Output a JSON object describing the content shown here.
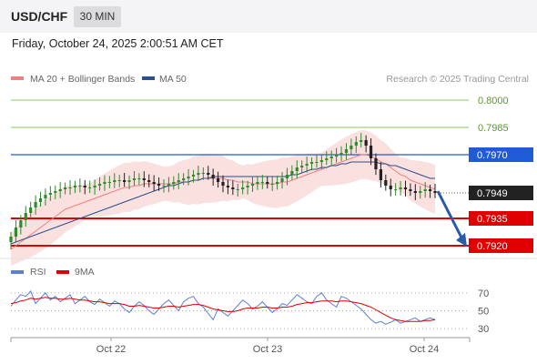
{
  "header": {
    "symbol": "USD/CHF",
    "interval": "30 MIN",
    "timestamp": "Friday, October 24, 2025 2:00:51 AM CET"
  },
  "legend": {
    "ma20": "MA 20 + Bollinger Bands",
    "ma50": "MA 50",
    "copyright": "Research © 2025 Trading Central",
    "rsi": "RSI",
    "ma9": "9MA"
  },
  "colors": {
    "up": "#2e8b2e",
    "down": "#222222",
    "ma20": "#f08080",
    "bands": "#fadada",
    "ma50": "#2a4e8e",
    "resistance": "#8cc860",
    "pivot": "#1e5bd6",
    "support": "#e00000",
    "rsi": "#5b7fd6",
    "rsi_ma": "#e00000",
    "arrow": "#2a5aa8"
  },
  "chart_data": [
    {
      "type": "line",
      "title": "",
      "xlabel": "",
      "ylabel": "",
      "ylim": [
        0.7915,
        0.8005
      ],
      "x_ticks": [
        "Oct 22",
        "Oct 23",
        "Oct 24"
      ],
      "last_price": "0.7949",
      "levels": [
        {
          "value": "0.8000",
          "kind": "resistance"
        },
        {
          "value": "0.7985",
          "kind": "resistance"
        },
        {
          "value": "0.7970",
          "kind": "pivot"
        },
        {
          "value": "0.7935",
          "kind": "support"
        },
        {
          "value": "0.7920",
          "kind": "support"
        }
      ],
      "projection": {
        "from": 0.795,
        "to": 0.7922
      },
      "closes": [
        0.7925,
        0.793,
        0.7934,
        0.7938,
        0.7941,
        0.7944,
        0.7946,
        0.7948,
        0.7949,
        0.795,
        0.7951,
        0.7952,
        0.7952,
        0.7953,
        0.7953,
        0.7952,
        0.7952,
        0.7953,
        0.7954,
        0.7955,
        0.7955,
        0.7956,
        0.7956,
        0.7955,
        0.7956,
        0.7957,
        0.7957,
        0.7956,
        0.7955,
        0.7954,
        0.7953,
        0.7953,
        0.7954,
        0.7955,
        0.7956,
        0.7957,
        0.7958,
        0.7959,
        0.796,
        0.796,
        0.7959,
        0.7957,
        0.7955,
        0.7953,
        0.7952,
        0.7951,
        0.7951,
        0.7952,
        0.7953,
        0.7954,
        0.7955,
        0.7955,
        0.7954,
        0.7954,
        0.7955,
        0.7957,
        0.7959,
        0.7961,
        0.7963,
        0.7964,
        0.7965,
        0.7966,
        0.7966,
        0.7967,
        0.7968,
        0.7969,
        0.797,
        0.7971,
        0.7973,
        0.7975,
        0.7977,
        0.7978,
        0.7975,
        0.7968,
        0.7962,
        0.7956,
        0.7953,
        0.7951,
        0.7951,
        0.7952,
        0.7951,
        0.795,
        0.7949,
        0.795,
        0.7951,
        0.795,
        0.7949
      ],
      "ma20": [
        0.7918,
        0.792,
        0.7922,
        0.7924,
        0.7926,
        0.7928,
        0.793,
        0.7932,
        0.7934,
        0.7936,
        0.7938,
        0.794,
        0.7941,
        0.7942,
        0.7943,
        0.7944,
        0.7945,
        0.7946,
        0.7947,
        0.7948,
        0.7949,
        0.795,
        0.7951,
        0.7952,
        0.7952,
        0.7953,
        0.7953,
        0.7954,
        0.7954,
        0.7954,
        0.7954,
        0.7954,
        0.7954,
        0.7954,
        0.7955,
        0.7955,
        0.7955,
        0.7956,
        0.7956,
        0.7957,
        0.7957,
        0.7957,
        0.7957,
        0.7957,
        0.7956,
        0.7956,
        0.7955,
        0.7955,
        0.7955,
        0.7954,
        0.7954,
        0.7954,
        0.7954,
        0.7954,
        0.7954,
        0.7955,
        0.7955,
        0.7956,
        0.7957,
        0.7958,
        0.7959,
        0.796,
        0.7961,
        0.7962,
        0.7963,
        0.7964,
        0.7965,
        0.7966,
        0.7967,
        0.7968,
        0.7969,
        0.797,
        0.797,
        0.7969,
        0.7968,
        0.7966,
        0.7965,
        0.7963,
        0.7961,
        0.7959,
        0.7958,
        0.7956,
        0.7955,
        0.7954,
        0.7953,
        0.7952,
        0.7951
      ],
      "ma50": [
        0.7921,
        0.7922,
        0.7923,
        0.7924,
        0.7925,
        0.7926,
        0.7927,
        0.7928,
        0.7929,
        0.793,
        0.7931,
        0.7932,
        0.7933,
        0.7934,
        0.7935,
        0.7936,
        0.7937,
        0.7938,
        0.7939,
        0.794,
        0.7941,
        0.7942,
        0.7943,
        0.7944,
        0.7945,
        0.7946,
        0.7947,
        0.7948,
        0.7949,
        0.795,
        0.7951,
        0.7952,
        0.7953,
        0.7953,
        0.7954,
        0.7955,
        0.7955,
        0.7956,
        0.7956,
        0.7957,
        0.7957,
        0.7958,
        0.7958,
        0.7958,
        0.7958,
        0.7958,
        0.7958,
        0.7958,
        0.7958,
        0.7958,
        0.7958,
        0.7958,
        0.7958,
        0.7958,
        0.7958,
        0.7958,
        0.7958,
        0.7959,
        0.7959,
        0.796,
        0.7961,
        0.7962,
        0.7962,
        0.7963,
        0.7963,
        0.7964,
        0.7964,
        0.7965,
        0.7965,
        0.7966,
        0.7966,
        0.7966,
        0.7966,
        0.7966,
        0.7966,
        0.7965,
        0.7965,
        0.7964,
        0.7964,
        0.7963,
        0.7962,
        0.7961,
        0.796,
        0.7959,
        0.7958,
        0.7957,
        0.7957
      ]
    },
    {
      "type": "line",
      "title": "RSI",
      "ylim": [
        25,
        80
      ],
      "y_ticks": [
        "70",
        "50",
        "30"
      ],
      "rsi": [
        55,
        62,
        68,
        66,
        72,
        58,
        64,
        70,
        62,
        66,
        60,
        64,
        68,
        58,
        62,
        66,
        60,
        57,
        63,
        59,
        55,
        61,
        58,
        52,
        48,
        55,
        60,
        56,
        50,
        46,
        52,
        58,
        62,
        56,
        50,
        60,
        64,
        66,
        58,
        54,
        47,
        40,
        52,
        48,
        44,
        50,
        56,
        62,
        58,
        52,
        55,
        60,
        54,
        48,
        52,
        58,
        56,
        62,
        68,
        64,
        60,
        58,
        66,
        70,
        62,
        58,
        54,
        66,
        64,
        60,
        56,
        52,
        46,
        40,
        36,
        38,
        35,
        37,
        40,
        36,
        38,
        40,
        42,
        38,
        40,
        42,
        40
      ],
      "rsi_ma": [
        58,
        59,
        61,
        62,
        64,
        63,
        64,
        65,
        64,
        64,
        63,
        63,
        64,
        63,
        62,
        62,
        61,
        60,
        60,
        59,
        58,
        58,
        58,
        57,
        55,
        55,
        56,
        55,
        54,
        53,
        53,
        54,
        55,
        55,
        54,
        55,
        56,
        57,
        57,
        56,
        54,
        52,
        51,
        50,
        49,
        49,
        50,
        52,
        53,
        53,
        53,
        54,
        54,
        53,
        53,
        54,
        54,
        55,
        57,
        58,
        59,
        59,
        60,
        61,
        61,
        61,
        60,
        61,
        61,
        60,
        59,
        58,
        56,
        54,
        51,
        48,
        45,
        42,
        40,
        39,
        38,
        38,
        38,
        38,
        39,
        39,
        40
      ]
    }
  ]
}
